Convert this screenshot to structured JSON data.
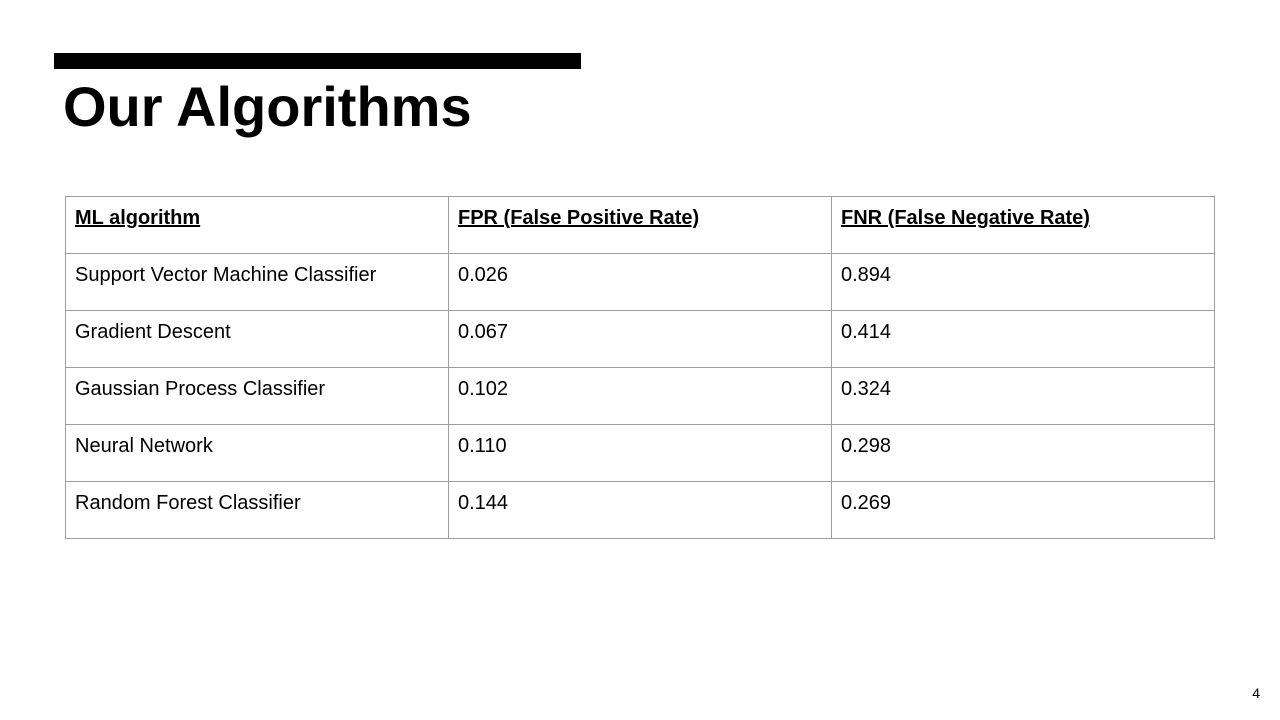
{
  "slide": {
    "title": "Our Algorithms",
    "page_number": "4"
  },
  "table": {
    "headers": [
      "ML algorithm",
      "FPR (False Positive Rate)",
      "FNR (False Negative Rate)"
    ],
    "rows": [
      [
        "Support Vector Machine Classifier",
        "0.026",
        "0.894"
      ],
      [
        "Gradient Descent",
        "0.067",
        "0.414"
      ],
      [
        "Gaussian Process Classifier",
        "0.102",
        "0.324"
      ],
      [
        "Neural Network",
        "0.110",
        "0.298"
      ],
      [
        "Random Forest Classifier",
        "0.144",
        "0.269"
      ]
    ]
  }
}
